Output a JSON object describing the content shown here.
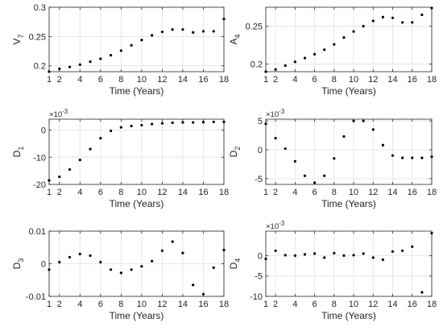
{
  "figure": {
    "background": "#ffffff",
    "axis_color": "#262626",
    "grid_color": "#e6e6e6",
    "marker_color": "#000000"
  },
  "chart_data": [
    {
      "type": "scatter",
      "title": "",
      "xlabel": "Time (Years)",
      "ylabel": {
        "base": "V",
        "sub": "7"
      },
      "multiplier": null,
      "xlim": [
        1,
        18
      ],
      "ylim": [
        0.19,
        0.3
      ],
      "xticks": [
        1,
        2,
        4,
        6,
        8,
        10,
        12,
        14,
        16,
        18
      ],
      "xticklabels": [
        "1",
        "2",
        "4",
        "6",
        "8",
        "10",
        "12",
        "14",
        "16",
        "18"
      ],
      "yticks": [
        0.2,
        0.25,
        0.3
      ],
      "yticklabels": [
        "0.2",
        "0.25",
        "0.3"
      ],
      "grid": true,
      "x": [
        1,
        2,
        3,
        4,
        5,
        6,
        7,
        8,
        9,
        10,
        11,
        12,
        13,
        14,
        15,
        16,
        17,
        18
      ],
      "y": [
        0.19,
        0.195,
        0.198,
        0.202,
        0.207,
        0.212,
        0.218,
        0.226,
        0.235,
        0.244,
        0.252,
        0.258,
        0.262,
        0.262,
        0.257,
        0.259,
        0.259,
        0.28
      ]
    },
    {
      "type": "scatter",
      "title": "",
      "xlabel": "Time (Years)",
      "ylabel": {
        "base": "A",
        "sub": "4"
      },
      "multiplier": null,
      "xlim": [
        1,
        18
      ],
      "ylim": [
        0.19,
        0.275
      ],
      "xticks": [
        1,
        2,
        4,
        6,
        8,
        10,
        12,
        14,
        16,
        18
      ],
      "xticklabels": [
        "1",
        "2",
        "4",
        "6",
        "8",
        "10",
        "12",
        "14",
        "16",
        "18"
      ],
      "yticks": [
        0.2,
        0.25
      ],
      "yticklabels": [
        "0.2",
        "0.25"
      ],
      "grid": true,
      "x": [
        1,
        2,
        3,
        4,
        5,
        6,
        7,
        8,
        9,
        10,
        11,
        12,
        13,
        14,
        15,
        16,
        17,
        18
      ],
      "y": [
        0.19,
        0.193,
        0.198,
        0.203,
        0.208,
        0.213,
        0.219,
        0.226,
        0.235,
        0.243,
        0.25,
        0.257,
        0.262,
        0.261,
        0.255,
        0.255,
        0.265,
        0.274
      ]
    },
    {
      "type": "scatter",
      "title": "",
      "xlabel": "Time (Years)",
      "ylabel": {
        "base": "D",
        "sub": "1"
      },
      "multiplier": {
        "base": "×10",
        "exp": "-3"
      },
      "xlim": [
        1,
        18
      ],
      "ylim": [
        -20,
        4
      ],
      "xticks": [
        1,
        2,
        4,
        6,
        8,
        10,
        12,
        14,
        16,
        18
      ],
      "xticklabels": [
        "1",
        "2",
        "4",
        "6",
        "8",
        "10",
        "12",
        "14",
        "16",
        "18"
      ],
      "yticks": [
        -20,
        -10,
        0
      ],
      "yticklabels": [
        "-20",
        "-10",
        "0"
      ],
      "grid": true,
      "x": [
        1,
        2,
        3,
        4,
        5,
        6,
        7,
        8,
        9,
        10,
        11,
        12,
        13,
        14,
        15,
        16,
        17,
        18
      ],
      "y": [
        -18.5,
        -17.2,
        -14.5,
        -11,
        -7,
        -3,
        -0.3,
        1,
        1.5,
        1.8,
        2.2,
        2.5,
        2.7,
        2.8,
        2.8,
        2.9,
        3,
        3
      ]
    },
    {
      "type": "scatter",
      "title": "",
      "xlabel": "Time (Years)",
      "ylabel": {
        "base": "D",
        "sub": "2"
      },
      "multiplier": {
        "base": "×10",
        "exp": "-3"
      },
      "xlim": [
        1,
        18
      ],
      "ylim": [
        -6,
        5.3
      ],
      "xticks": [
        1,
        2,
        4,
        6,
        8,
        10,
        12,
        14,
        16,
        18
      ],
      "xticklabels": [
        "1",
        "2",
        "4",
        "6",
        "8",
        "10",
        "12",
        "14",
        "16",
        "18"
      ],
      "yticks": [
        -5,
        0,
        5
      ],
      "yticklabels": [
        "-5",
        "0",
        "5"
      ],
      "grid": true,
      "x": [
        1,
        2,
        3,
        4,
        5,
        6,
        7,
        8,
        9,
        10,
        11,
        12,
        13,
        14,
        15,
        16,
        17,
        18
      ],
      "y": [
        4.5,
        2,
        0.2,
        -2,
        -4.5,
        -5.7,
        -4.5,
        -1.5,
        2.3,
        5,
        5,
        3.5,
        0.8,
        -1,
        -1.4,
        -1.4,
        -1.4,
        -1.2
      ]
    },
    {
      "type": "scatter",
      "title": "",
      "xlabel": "Time (Years)",
      "ylabel": {
        "base": "D",
        "sub": "3"
      },
      "multiplier": null,
      "xlim": [
        1,
        18
      ],
      "ylim": [
        -0.01,
        0.01
      ],
      "xticks": [
        1,
        2,
        4,
        6,
        8,
        10,
        12,
        14,
        16,
        18
      ],
      "xticklabels": [
        "1",
        "2",
        "4",
        "6",
        "8",
        "10",
        "12",
        "14",
        "16",
        "18"
      ],
      "yticks": [
        -0.01,
        0,
        0.01
      ],
      "yticklabels": [
        "-0.01",
        "0",
        "0.01"
      ],
      "grid": true,
      "x": [
        1,
        2,
        3,
        4,
        5,
        6,
        7,
        8,
        9,
        10,
        11,
        12,
        13,
        14,
        15,
        16,
        17,
        18
      ],
      "y": [
        -0.0018,
        0.0005,
        0.002,
        0.003,
        0.0025,
        0.0005,
        -0.0018,
        -0.0028,
        -0.0018,
        -0.0008,
        0.0008,
        0.004,
        0.0068,
        0.0033,
        -0.0065,
        -0.0093,
        -0.0012,
        0.0042
      ]
    },
    {
      "type": "scatter",
      "title": "",
      "xlabel": "Time (Years)",
      "ylabel": {
        "base": "D",
        "sub": "4"
      },
      "multiplier": {
        "base": "×10",
        "exp": "-3"
      },
      "xlim": [
        1,
        18
      ],
      "ylim": [
        -10,
        6
      ],
      "xticks": [
        1,
        2,
        4,
        6,
        8,
        10,
        12,
        14,
        16,
        18
      ],
      "xticklabels": [
        "1",
        "2",
        "4",
        "6",
        "8",
        "10",
        "12",
        "14",
        "16",
        "18"
      ],
      "yticks": [
        -10,
        -5,
        0
      ],
      "yticklabels": [
        "-10",
        "-5",
        "0"
      ],
      "grid": true,
      "x": [
        1,
        2,
        3,
        4,
        5,
        6,
        7,
        8,
        9,
        10,
        11,
        12,
        13,
        14,
        15,
        16,
        17,
        18
      ],
      "y": [
        -0.8,
        1.2,
        0.1,
        0,
        0.3,
        0.5,
        -0.5,
        0.6,
        0,
        0.1,
        0.5,
        -0.5,
        -1,
        1,
        1.2,
        2.2,
        -9,
        5.5
      ]
    }
  ]
}
